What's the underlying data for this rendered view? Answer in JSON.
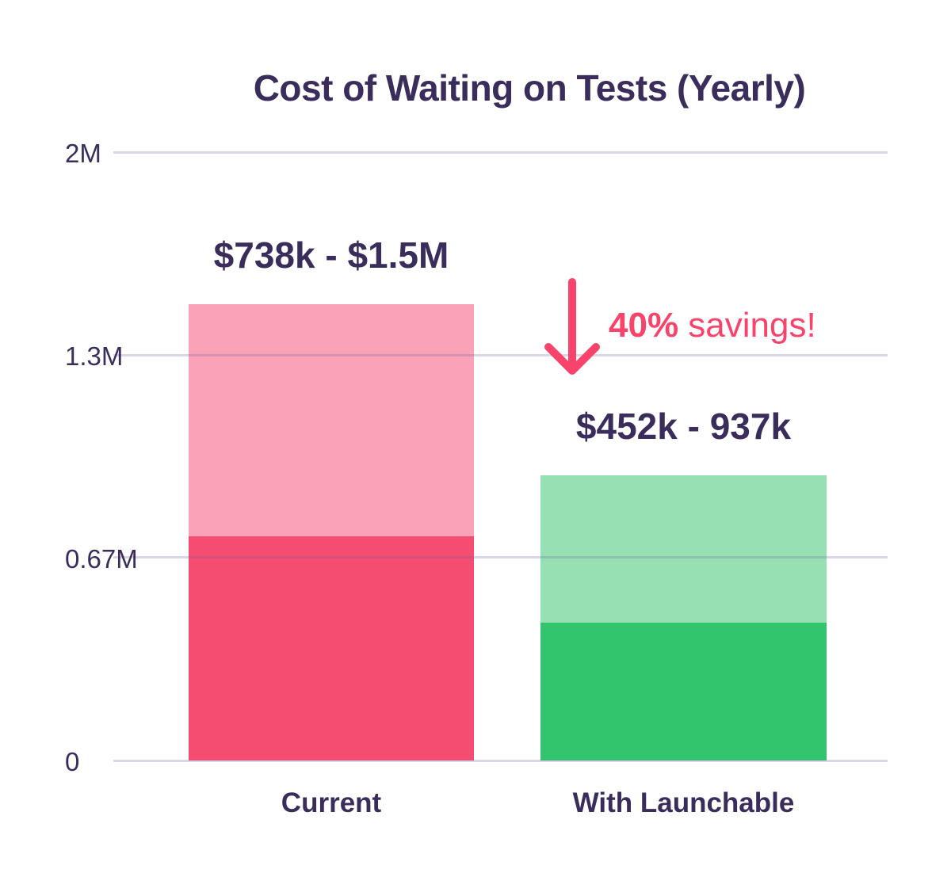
{
  "page": {
    "background": "#ffffff"
  },
  "chart_data": {
    "type": "bar",
    "subtype": "stacked-range-columns",
    "title": "Cost of Waiting on Tests (Yearly)",
    "categories": [
      "Current",
      "With Launchable"
    ],
    "bars": [
      {
        "category": "Current",
        "range_label": "$738k - $1.5M",
        "low": 738000,
        "high": 1500000,
        "low_color": "#f54d71",
        "high_color": "#f9a2b8"
      },
      {
        "category": "With Launchable",
        "range_label": "$452k - 937k",
        "low": 452000,
        "high": 937000,
        "low_color": "#33c46e",
        "high_color": "#96e0b3"
      }
    ],
    "ylim": [
      0,
      2000000
    ],
    "y_ticks": [
      {
        "value": 2000000,
        "label": "2M"
      },
      {
        "value": 1333333,
        "label": "1.3M"
      },
      {
        "value": 666667,
        "label": "0.67M"
      },
      {
        "value": 0,
        "label": "0"
      }
    ],
    "grid": "horizontal",
    "legend": "none",
    "annotation": {
      "bold_text": "40%",
      "regular_text": " savings!",
      "icon": "down-arrow",
      "color": "#f8436b"
    }
  },
  "colors": {
    "text": "#3a2d5c",
    "accent": "#f8436b",
    "gridline": "#dcd9e9"
  }
}
